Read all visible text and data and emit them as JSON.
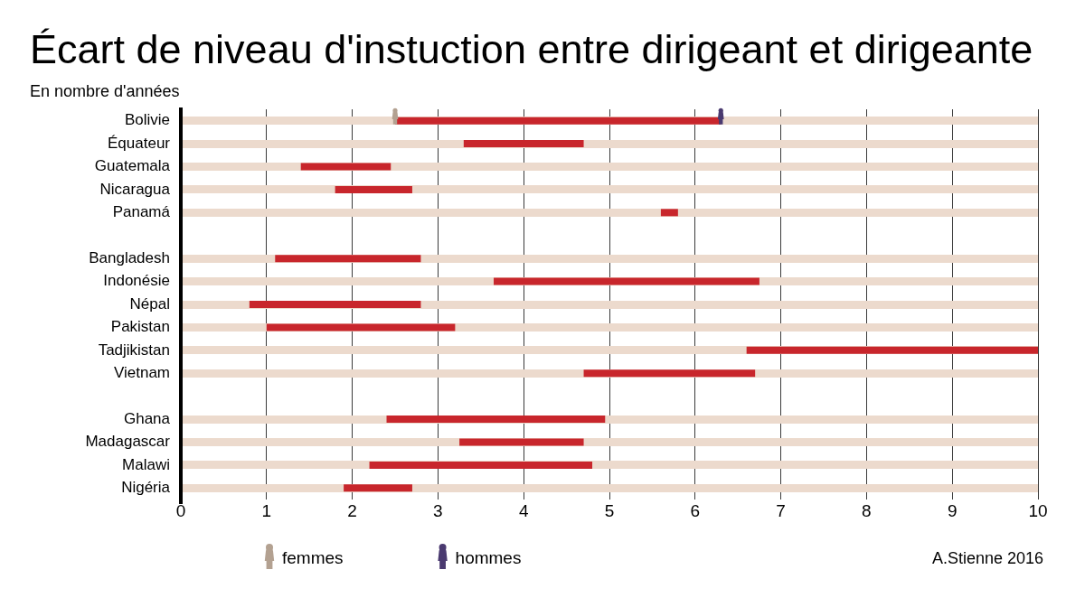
{
  "chart_data": {
    "type": "bar",
    "orientation": "horizontal",
    "title": "Écart de niveau d'instuction entre dirigeant et dirigeante",
    "subtitle": "En nombre d'années",
    "categories": [
      "Bolivie",
      "Équateur",
      "Guatemala",
      "Nicaragua",
      "Panamá",
      null,
      "Bangladesh",
      "Indonésie",
      "Népal",
      "Pakistan",
      "Tadjikistan",
      "Vietnam",
      null,
      "Ghana",
      "Madagascar",
      "Malawi",
      "Nigéria"
    ],
    "series": [
      {
        "type": "bar",
        "color": "#c8262c",
        "base": [
          2.5,
          3.3,
          1.4,
          1.8,
          5.6,
          null,
          1.1,
          3.65,
          0.8,
          1.0,
          6.6,
          4.7,
          null,
          2.4,
          3.25,
          2.2,
          1.9
        ],
        "values": [
          3.8,
          1.4,
          1.05,
          0.9,
          0.2,
          null,
          1.7,
          3.1,
          2.0,
          2.2,
          3.4,
          2.0,
          null,
          2.55,
          1.45,
          2.6,
          0.8
        ]
      },
      {
        "type": "scatter",
        "name": "femmes",
        "color": "#b3a191",
        "values": [
          2.5,
          null,
          null,
          null,
          null,
          null,
          null,
          null,
          null,
          null,
          null,
          null,
          null,
          null,
          null,
          null,
          null
        ]
      },
      {
        "type": "scatter",
        "name": "hommes",
        "color": "#4a3a70",
        "values": [
          6.3,
          null,
          null,
          null,
          null,
          null,
          null,
          null,
          null,
          null,
          null,
          null,
          null,
          null,
          null,
          null,
          null
        ]
      }
    ],
    "xlim": [
      0,
      10
    ],
    "xticks": [
      0,
      1,
      2,
      3,
      4,
      5,
      6,
      7,
      8,
      9,
      10
    ],
    "grid": true,
    "legend": "bottom",
    "annotations": [
      "A.Stienne 2016"
    ]
  }
}
